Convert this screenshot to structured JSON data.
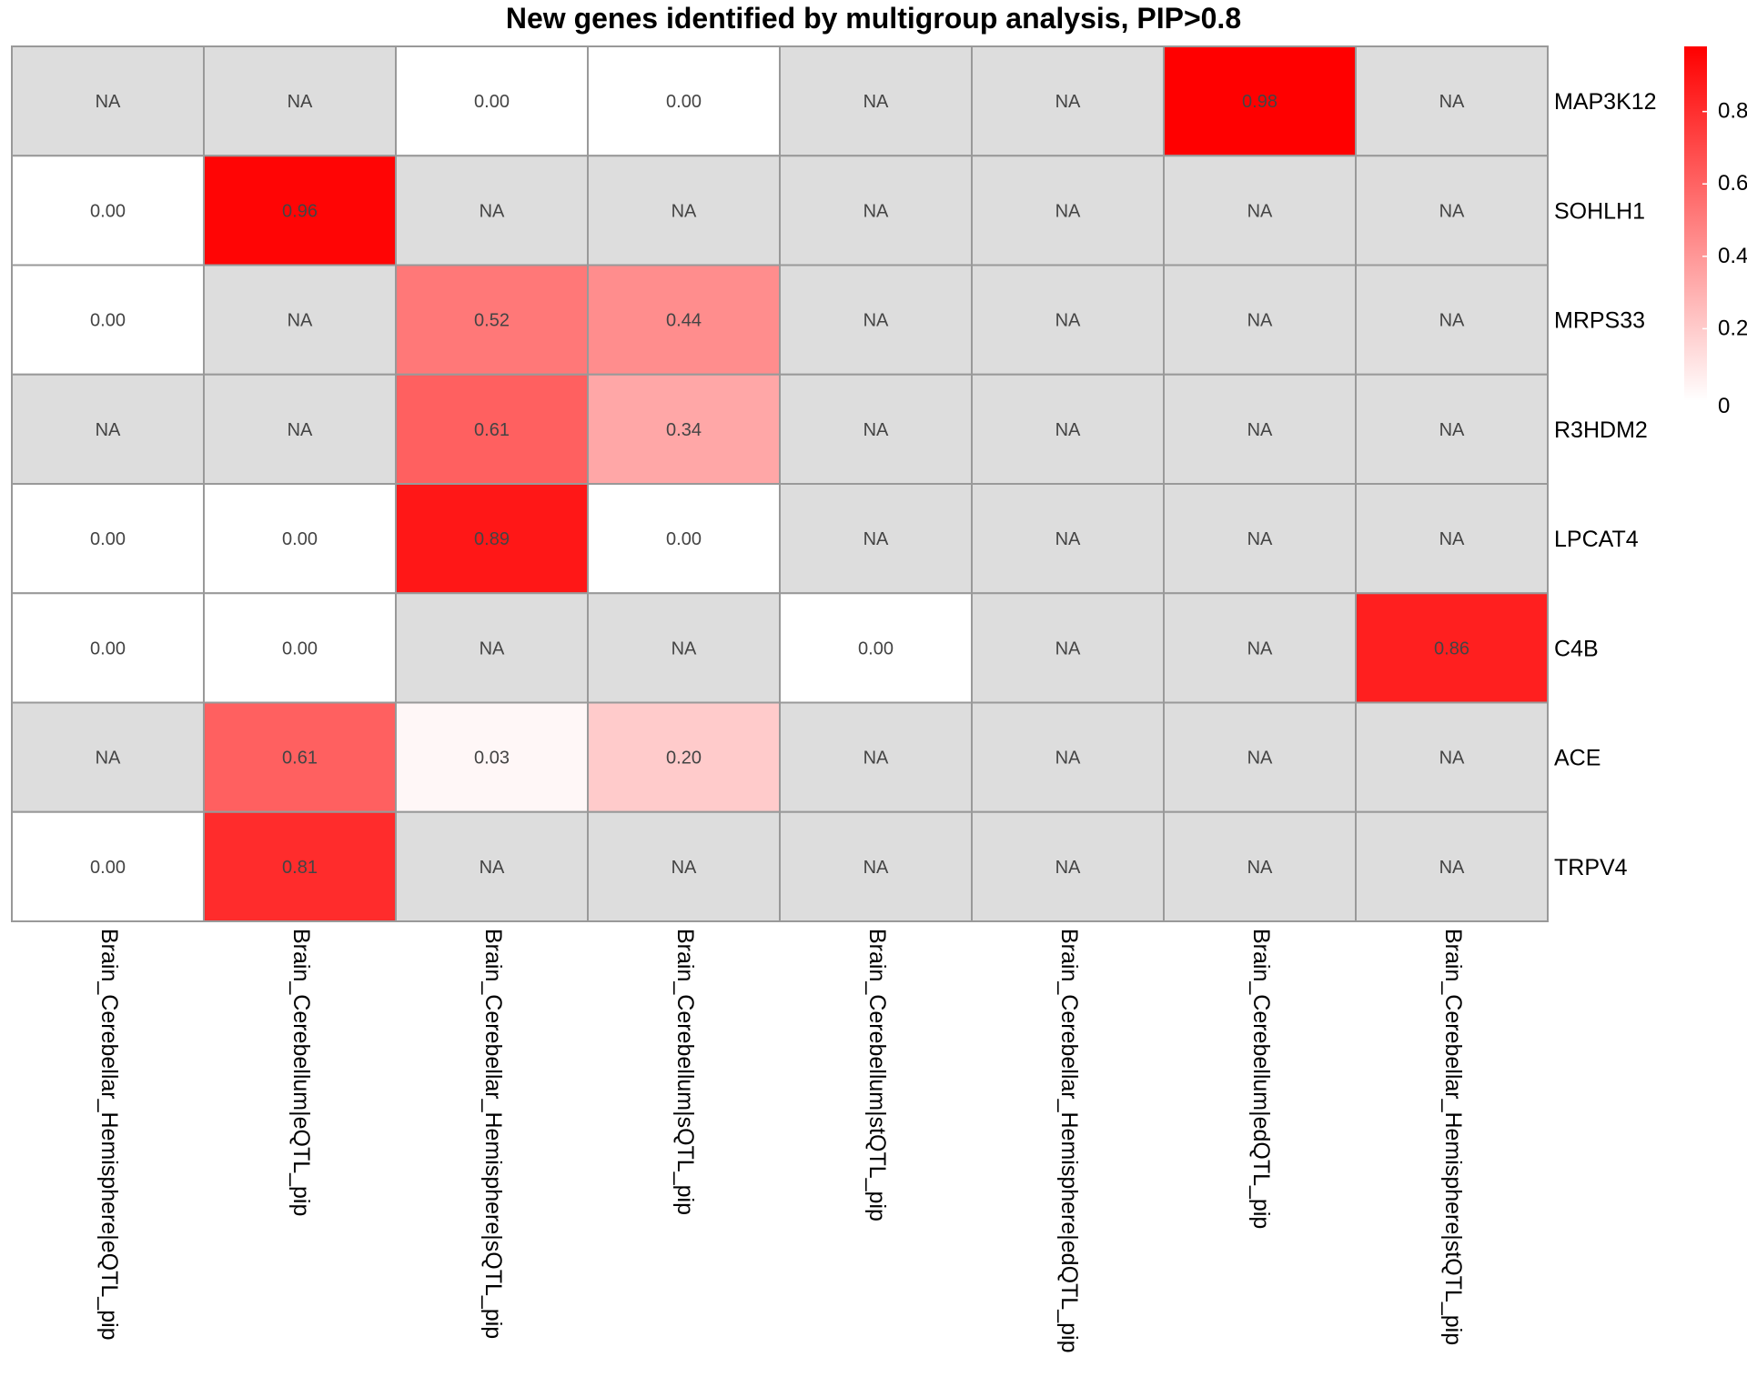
{
  "chart_data": {
    "type": "heatmap",
    "title": "New genes identified by multigroup analysis, PIP>0.8",
    "columns": [
      "Brain_Cerebellar_Hemisphere|eQTL_pip",
      "Brain_Cerebellum|eQTL_pip",
      "Brain_Cerebellar_Hemisphere|sQTL_pip",
      "Brain_Cerebellum|sQTL_pip",
      "Brain_Cerebellum|stQTL_pip",
      "Brain_Cerebellar_Hemisphere|edQTL_pip",
      "Brain_Cerebellum|edQTL_pip",
      "Brain_Cerebellar_Hemisphere|stQTL_pip"
    ],
    "rows": [
      "MAP3K12",
      "SOHLH1",
      "MRPS33",
      "R3HDM2",
      "LPCAT4",
      "C4B",
      "ACE",
      "TRPV4"
    ],
    "values": [
      [
        null,
        null,
        0.0,
        0.0,
        null,
        null,
        0.98,
        null
      ],
      [
        0.0,
        0.96,
        null,
        null,
        null,
        null,
        null,
        null
      ],
      [
        0.0,
        null,
        0.52,
        0.44,
        null,
        null,
        null,
        null
      ],
      [
        null,
        null,
        0.61,
        0.34,
        null,
        null,
        null,
        null
      ],
      [
        0.0,
        0.0,
        0.89,
        0.0,
        null,
        null,
        null,
        null
      ],
      [
        0.0,
        0.0,
        null,
        null,
        0.0,
        null,
        null,
        0.86
      ],
      [
        null,
        0.61,
        0.03,
        0.2,
        null,
        null,
        null,
        null
      ],
      [
        0.0,
        0.81,
        null,
        null,
        null,
        null,
        null,
        null
      ]
    ],
    "na_label": "NA",
    "na_color": "#dddddd",
    "color_low": "#ffffff",
    "color_high": "#ff0000",
    "legend": {
      "position": "right",
      "ticks": [
        0,
        0.2,
        0.4,
        0.6,
        0.8
      ],
      "tick_labels": [
        "0",
        "0.2",
        "0.4",
        "0.6",
        "0.8"
      ],
      "range": [
        0,
        0.98
      ]
    },
    "grid_color": "#999999"
  }
}
